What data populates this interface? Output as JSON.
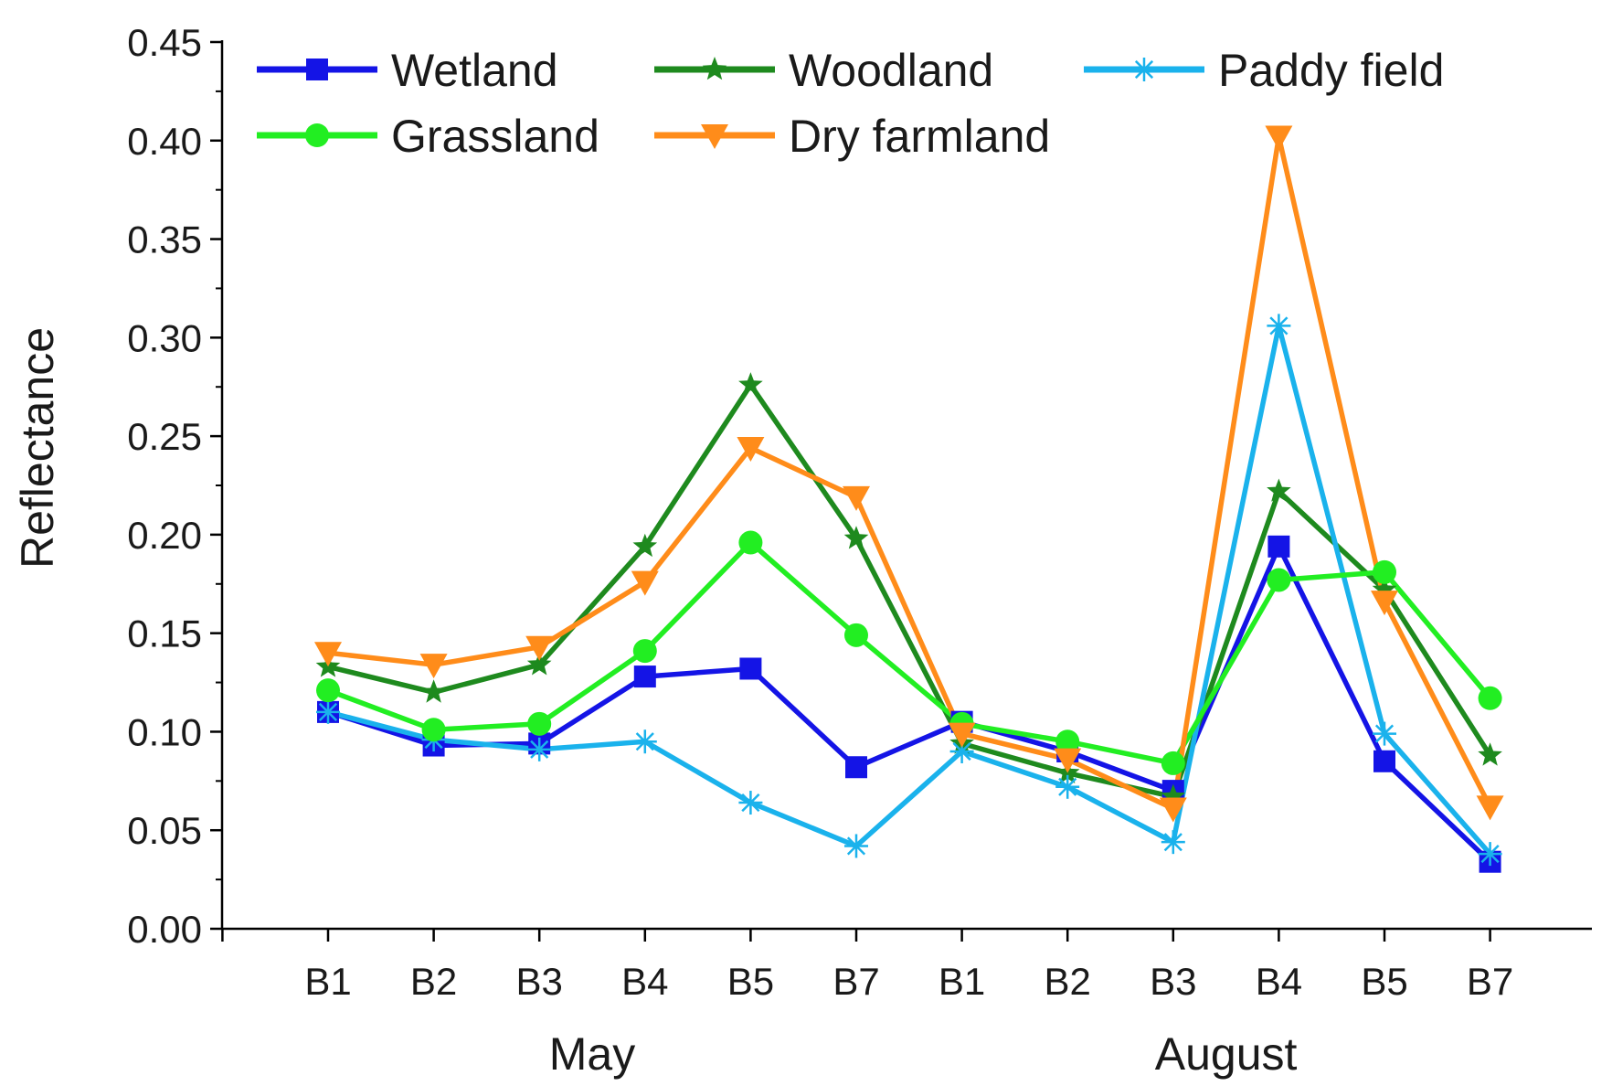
{
  "chart_data": {
    "type": "line",
    "title": "",
    "xlabel": "",
    "ylabel": "Reflectance",
    "ylim": [
      0.0,
      0.45
    ],
    "y_ticks": [
      "0.00",
      "0.05",
      "0.10",
      "0.15",
      "0.20",
      "0.25",
      "0.30",
      "0.35",
      "0.40",
      "0.45"
    ],
    "categories": [
      "B1",
      "B2",
      "B3",
      "B4",
      "B5",
      "B7",
      "B1",
      "B2",
      "B3",
      "B4",
      "B5",
      "B7"
    ],
    "groups": [
      {
        "label": "May",
        "from": 0,
        "to": 5
      },
      {
        "label": "August",
        "from": 6,
        "to": 11
      }
    ],
    "grid": false,
    "legend_position": "top-left",
    "series": [
      {
        "name": "Wetland",
        "color": "#1414e6",
        "marker": "square",
        "values": [
          0.11,
          0.093,
          0.094,
          0.128,
          0.132,
          0.082,
          0.105,
          0.09,
          0.07,
          0.194,
          0.085,
          0.034
        ]
      },
      {
        "name": "Woodland",
        "color": "#1e8a1e",
        "marker": "star",
        "values": [
          0.133,
          0.12,
          0.134,
          0.194,
          0.276,
          0.198,
          0.094,
          0.079,
          0.067,
          0.222,
          0.172,
          0.088
        ]
      },
      {
        "name": "Paddy field",
        "color": "#1ab2ec",
        "marker": "asterisk",
        "values": [
          0.11,
          0.096,
          0.091,
          0.095,
          0.064,
          0.042,
          0.09,
          0.072,
          0.044,
          0.306,
          0.099,
          0.038
        ]
      },
      {
        "name": "Grassland",
        "color": "#22ee22",
        "marker": "circle",
        "values": [
          0.121,
          0.101,
          0.104,
          0.141,
          0.196,
          0.149,
          0.104,
          0.095,
          0.084,
          0.177,
          0.181,
          0.117
        ]
      },
      {
        "name": "Dry farmland",
        "color": "#ff8c1a",
        "marker": "triangle-down",
        "values": [
          0.14,
          0.134,
          0.143,
          0.176,
          0.244,
          0.219,
          0.099,
          0.086,
          0.061,
          0.402,
          0.166,
          0.062
        ]
      }
    ]
  }
}
